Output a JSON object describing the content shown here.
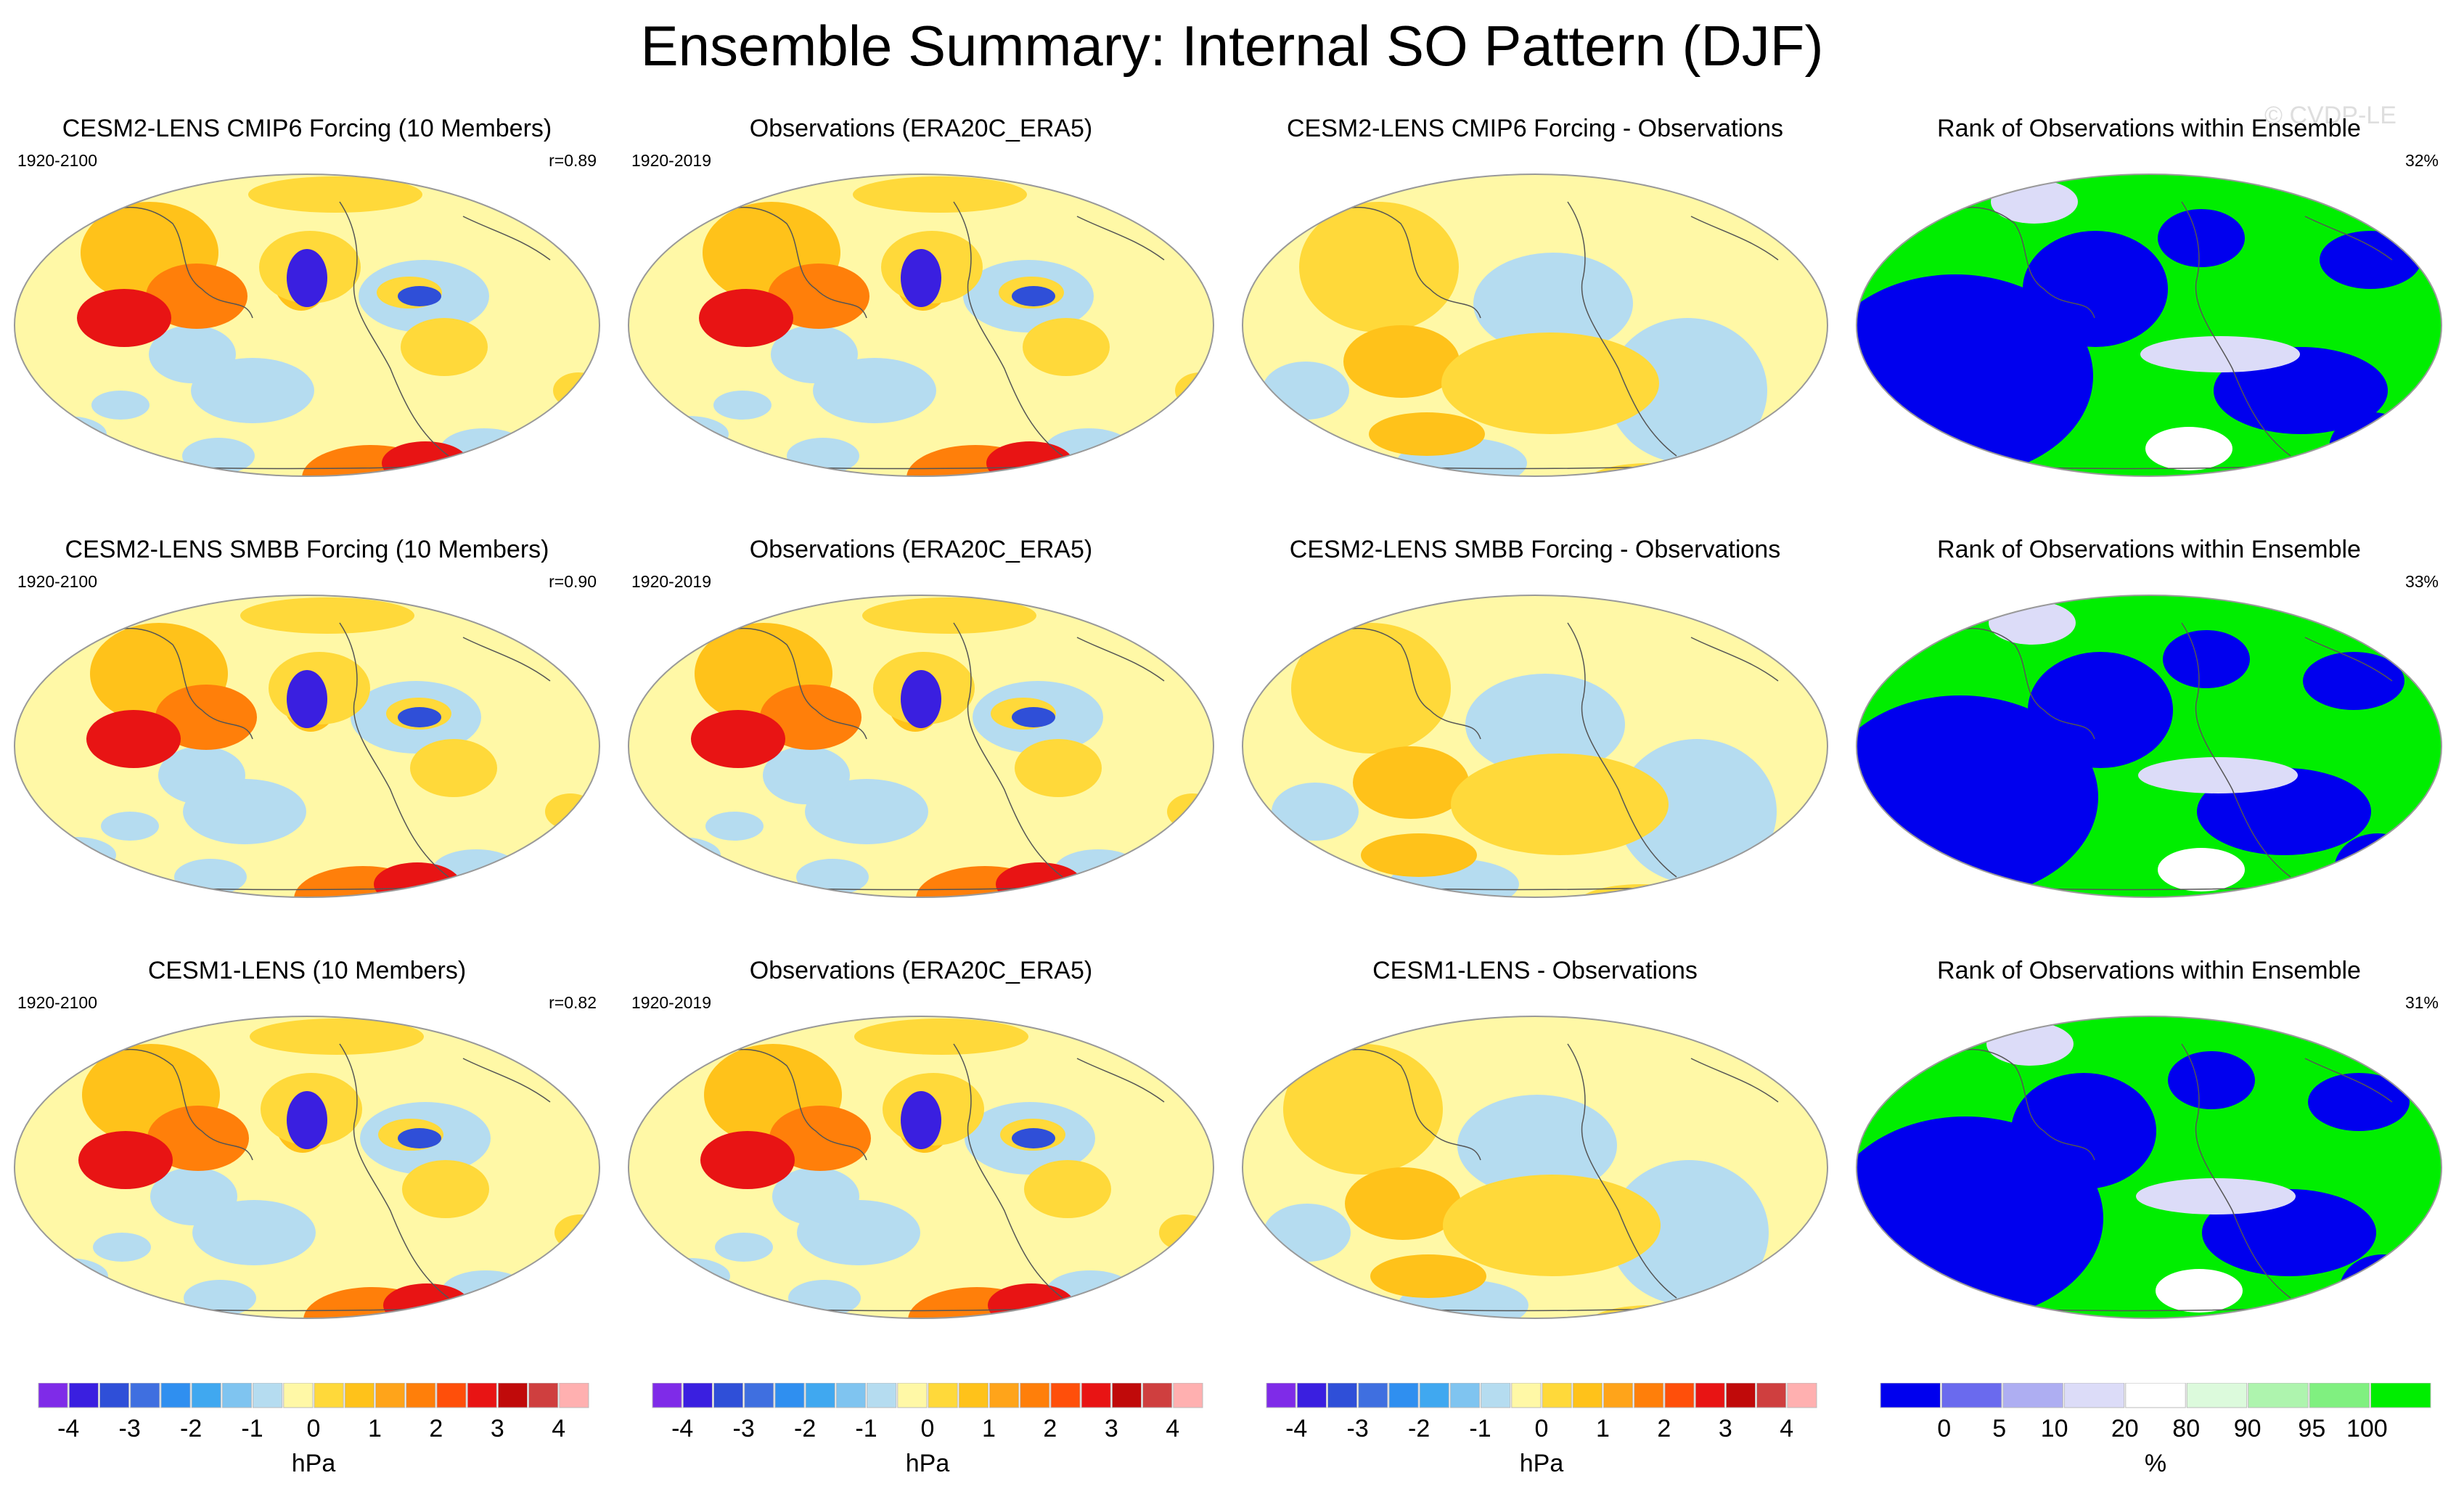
{
  "title": "Ensemble Summary: Internal SO Pattern (DJF)",
  "watermark": "© CVDP-LE",
  "panels": [
    {
      "id": "p00",
      "kind": "slp",
      "title": "CESM2-LENS CMIP6 Forcing (10 Members)",
      "years": "1920-2100",
      "stat": "r=0.89"
    },
    {
      "id": "p01",
      "kind": "slp",
      "title": "Observations (ERA20C_ERA5)",
      "years": "1920-2019",
      "stat": ""
    },
    {
      "id": "p02",
      "kind": "diff",
      "title": "CESM2-LENS CMIP6 Forcing - Observations",
      "years": "",
      "stat": ""
    },
    {
      "id": "p03",
      "kind": "rank",
      "title": "Rank of Observations within Ensemble",
      "years": "",
      "stat": "32%"
    },
    {
      "id": "p10",
      "kind": "slp",
      "title": "CESM2-LENS SMBB Forcing (10 Members)",
      "years": "1920-2100",
      "stat": "r=0.90"
    },
    {
      "id": "p11",
      "kind": "slp",
      "title": "Observations (ERA20C_ERA5)",
      "years": "1920-2019",
      "stat": ""
    },
    {
      "id": "p12",
      "kind": "diff",
      "title": "CESM2-LENS SMBB Forcing - Observations",
      "years": "",
      "stat": ""
    },
    {
      "id": "p13",
      "kind": "rank",
      "title": "Rank of Observations within Ensemble",
      "years": "",
      "stat": "33%"
    },
    {
      "id": "p20",
      "kind": "slp",
      "title": "CESM1-LENS (10 Members)",
      "years": "1920-2100",
      "stat": "r=0.82"
    },
    {
      "id": "p21",
      "kind": "slp",
      "title": "Observations (ERA20C_ERA5)",
      "years": "1920-2019",
      "stat": ""
    },
    {
      "id": "p22",
      "kind": "diff",
      "title": "CESM1-LENS - Observations",
      "years": "",
      "stat": ""
    },
    {
      "id": "p23",
      "kind": "rank",
      "title": "Rank of Observations within Ensemble",
      "years": "",
      "stat": "31%"
    }
  ],
  "chart_data": {
    "type": "heatmap",
    "map_projection": "Robinson",
    "slp_colorbar": {
      "label": "hPa",
      "tick_labels": [
        "-4",
        "-3",
        "-2",
        "-1",
        "0",
        "1",
        "2",
        "3",
        "4"
      ],
      "colors": [
        "#7f2be8",
        "#3a1fe0",
        "#2f4fd8",
        "#3f6fe0",
        "#2f8ff0",
        "#40a8f0",
        "#7fc4f0",
        "#b5dcf0",
        "#fff8a6",
        "#ffd93a",
        "#ffc21a",
        "#ffa41a",
        "#ff7f0a",
        "#ff4f0a",
        "#e81414",
        "#c00a0a",
        "#cf3f3f",
        "#ffb0b0"
      ]
    },
    "rank_colorbar": {
      "label": "%",
      "tick_labels": [
        "0",
        "5",
        "10",
        "20",
        "80",
        "90",
        "95",
        "100"
      ],
      "colors": [
        "#0000ee",
        "#6a6aee",
        "#aeaef2",
        "#dcdcf8",
        "#ffffff",
        "#dcfadc",
        "#aef4ae",
        "#80f080",
        "#00ee00"
      ]
    }
  }
}
